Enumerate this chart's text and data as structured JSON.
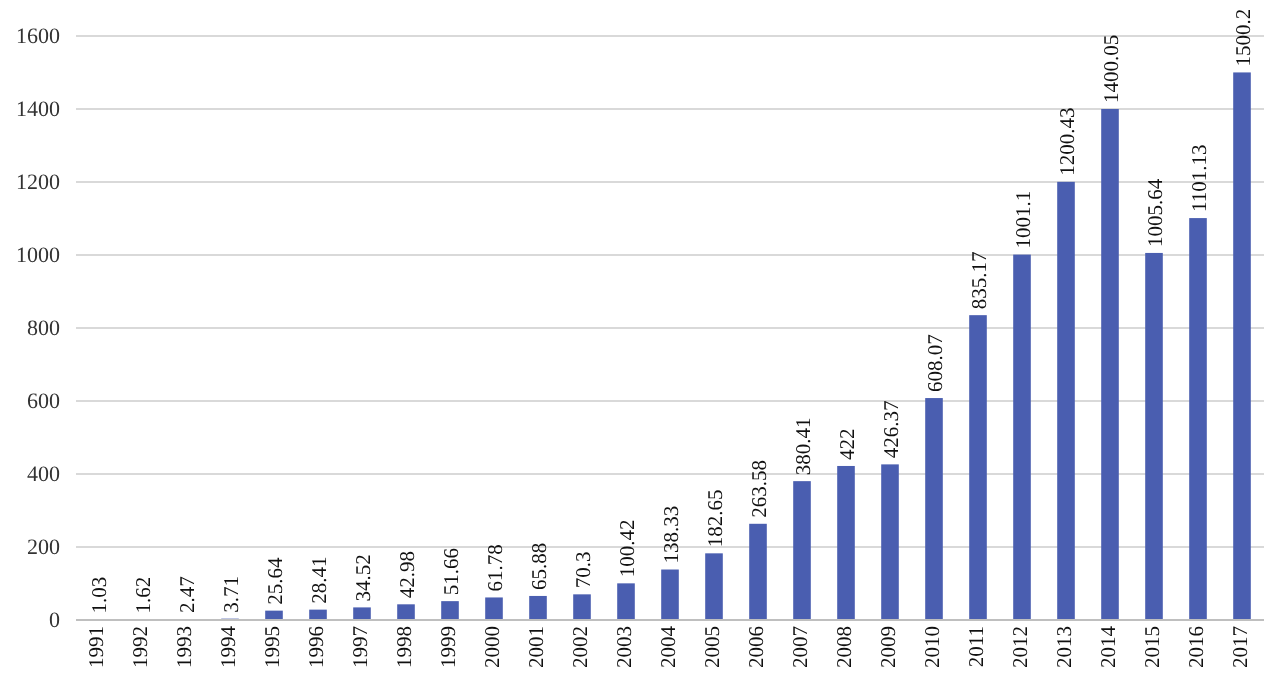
{
  "chart_data": {
    "type": "bar",
    "categories": [
      "1991",
      "1992",
      "1993",
      "1994",
      "1995",
      "1996",
      "1997",
      "1998",
      "1999",
      "2000",
      "2001",
      "2002",
      "2003",
      "2004",
      "2005",
      "2006",
      "2007",
      "2008",
      "2009",
      "2010",
      "2011",
      "2012",
      "2013",
      "2014",
      "2015",
      "2016",
      "2017"
    ],
    "values": [
      1.03,
      1.62,
      2.47,
      3.71,
      25.64,
      28.41,
      34.52,
      42.98,
      51.66,
      61.78,
      65.88,
      70.3,
      100.42,
      138.33,
      182.65,
      263.58,
      380.41,
      422,
      426.37,
      608.07,
      835.17,
      1001.1,
      1200.43,
      1400.05,
      1005.64,
      1101.13,
      1500.2
    ],
    "color": "#4a5eb0",
    "ylim": [
      0,
      1600
    ],
    "yticks": [
      0,
      200,
      400,
      600,
      800,
      1000,
      1200,
      1400,
      1600
    ],
    "grid": "y",
    "data_labels": true
  }
}
